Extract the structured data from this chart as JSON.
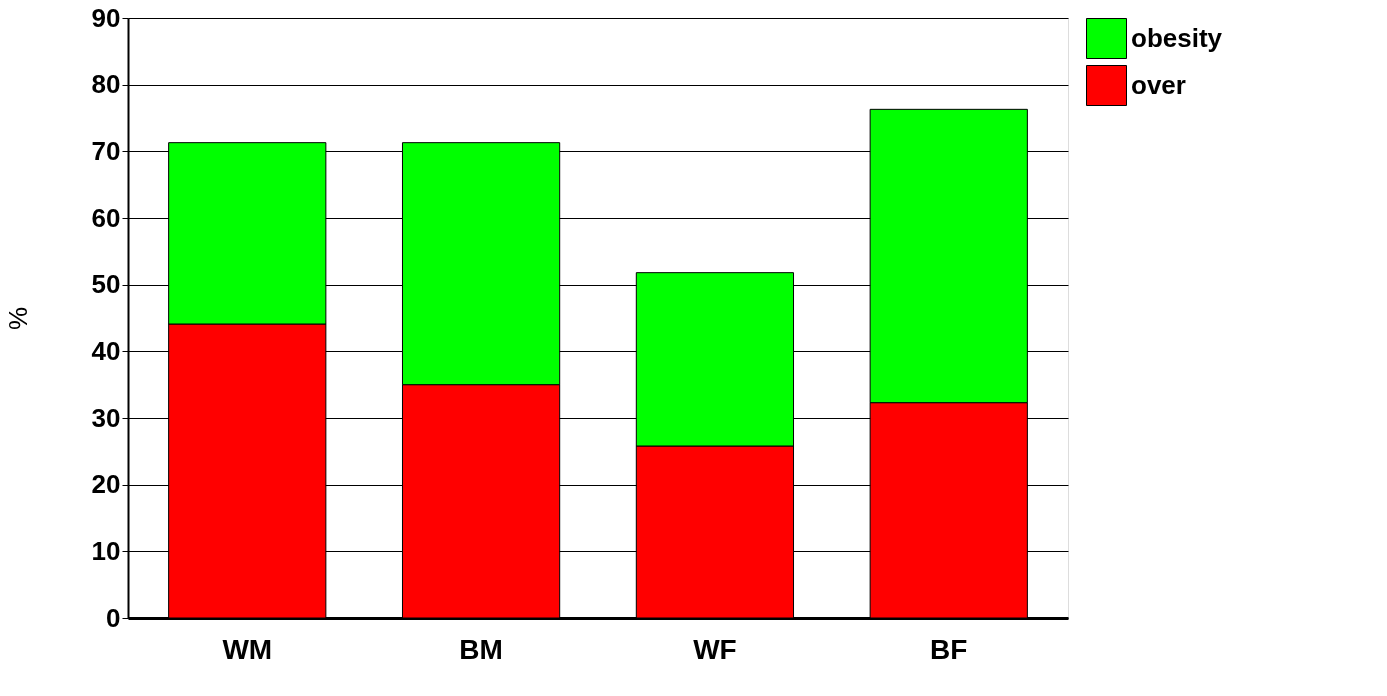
{
  "chart_data": {
    "type": "bar",
    "stacked": true,
    "ylabel": "%",
    "categories": [
      "WM",
      "BM",
      "WF",
      "BF"
    ],
    "series": [
      {
        "name": "over",
        "color": "#ff0000",
        "values": [
          44.1,
          35.0,
          25.8,
          32.3
        ]
      },
      {
        "name": "obesity",
        "color": "#00ff00",
        "values": [
          27.2,
          36.3,
          26.0,
          44.0
        ]
      }
    ],
    "ylim": [
      0,
      90
    ],
    "yticks": [
      0,
      10,
      20,
      30,
      40,
      50,
      60,
      70,
      80,
      90
    ],
    "grid": "y",
    "legend": "right"
  }
}
